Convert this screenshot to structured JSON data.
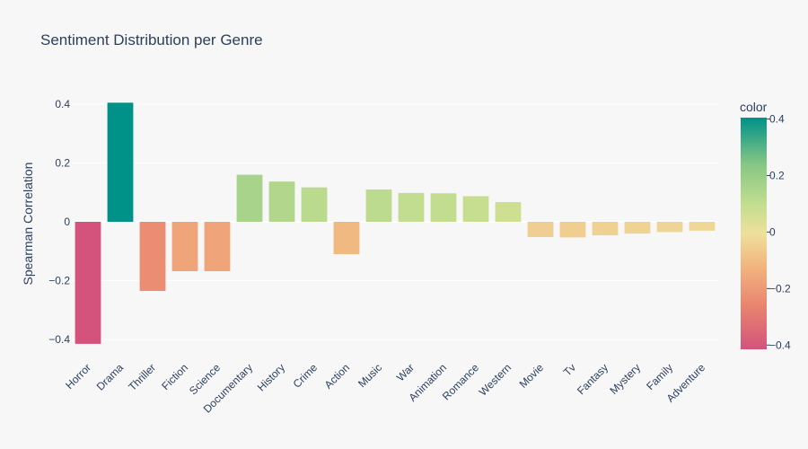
{
  "chart_data": {
    "type": "bar",
    "title": "Sentiment Distribution per Genre",
    "xlabel": "",
    "ylabel": "Spearman Correlation",
    "ylim": [
      -0.43,
      0.43
    ],
    "yticks": [
      0.4,
      0.2,
      0,
      -0.2,
      -0.4
    ],
    "ytick_labels": [
      "0.4",
      "0.2",
      "0",
      "−0.2",
      "−0.4"
    ],
    "grid": true,
    "categories": [
      "Horror",
      "Drama",
      "Thriller",
      "Fiction",
      "Science",
      "Documentary",
      "History",
      "Crime",
      "Action",
      "Music",
      "War",
      "Animation",
      "Romance",
      "Western",
      "Movie",
      "Tv",
      "Fantasy",
      "Mystery",
      "Family",
      "Adventure"
    ],
    "values": [
      -0.415,
      0.405,
      -0.235,
      -0.168,
      -0.168,
      0.16,
      0.137,
      0.117,
      -0.11,
      0.11,
      0.098,
      0.097,
      0.087,
      0.067,
      -0.052,
      -0.053,
      -0.046,
      -0.04,
      -0.035,
      -0.03
    ],
    "colorbar": {
      "title": "color",
      "range": [
        -0.415,
        0.405
      ],
      "ticks": [
        0.4,
        0.2,
        0,
        -0.2,
        -0.4
      ],
      "tick_labels": [
        "0.4",
        "0.2",
        "0",
        "−0.2",
        "−0.4"
      ],
      "colorscale": [
        [
          0.0,
          "#d3537c"
        ],
        [
          0.18,
          "#e8826f"
        ],
        [
          0.35,
          "#f2b27e"
        ],
        [
          0.5,
          "#eee09c"
        ],
        [
          0.62,
          "#c4de8f"
        ],
        [
          0.8,
          "#86c685"
        ],
        [
          1.0,
          "#009188"
        ]
      ]
    }
  }
}
